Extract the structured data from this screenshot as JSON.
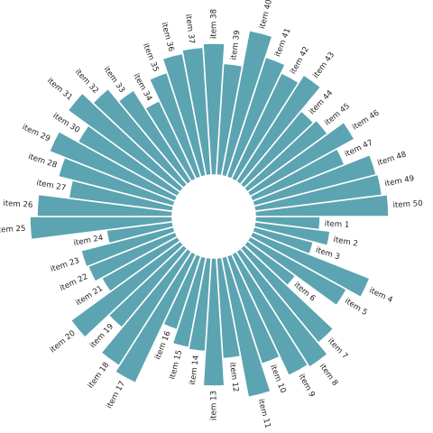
{
  "chart_data": {
    "type": "bar",
    "layout": "circular",
    "bar_color": "#5ca4b1",
    "background": "#ffffff",
    "grid": false,
    "legend": false,
    "categories": [
      "item 1",
      "item 2",
      "item 3",
      "item 4",
      "item 5",
      "item 6",
      "item 7",
      "item 8",
      "item 9",
      "item 10",
      "item 11",
      "item 12",
      "item 13",
      "item 14",
      "item 15",
      "item 16",
      "item 17",
      "item 18",
      "item 19",
      "item 20",
      "item 21",
      "item 22",
      "item 23",
      "item 24",
      "item 25",
      "item 26",
      "item 27",
      "item 28",
      "item 29",
      "item 30",
      "item 31",
      "item 32",
      "item 33",
      "item 34",
      "item 35",
      "item 36",
      "item 37",
      "item 38",
      "item 39",
      "item 40",
      "item 41",
      "item 42",
      "item 43",
      "item 44",
      "item 45",
      "item 46",
      "item 47",
      "item 48",
      "item 49",
      "item 50"
    ],
    "values": [
      72,
      84,
      68,
      140,
      122,
      66,
      136,
      152,
      149,
      126,
      158,
      112,
      142,
      104,
      102,
      86,
      158,
      150,
      114,
      150,
      96,
      104,
      106,
      74,
      158,
      150,
      116,
      132,
      150,
      126,
      154,
      138,
      120,
      96,
      122,
      138,
      142,
      146,
      124,
      164,
      140,
      130,
      140,
      106,
      110,
      132,
      110,
      140,
      142,
      148
    ]
  }
}
